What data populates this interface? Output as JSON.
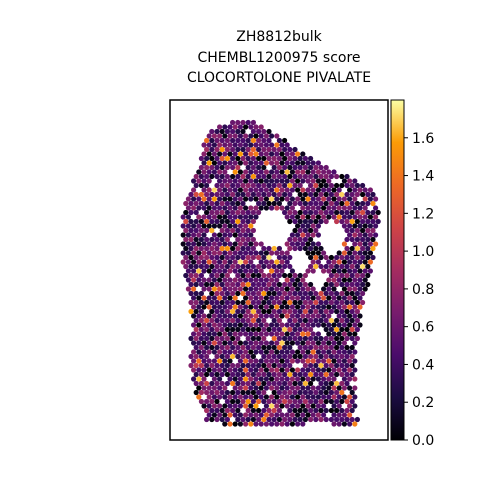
{
  "chart_data": {
    "type": "scatter",
    "title_lines": [
      "ZH8812bulk",
      "CHEMBL1200975 score",
      "CLOCORTOLONE PIVALATE"
    ],
    "xlabel": "",
    "ylabel": "",
    "grid": false,
    "legend": "none",
    "colorbar": {
      "colormap": "inferno",
      "range": [
        0.0,
        1.8
      ],
      "ticks": [
        0.0,
        0.2,
        0.4,
        0.6,
        0.8,
        1.0,
        1.2,
        1.4,
        1.6
      ],
      "tick_labels": [
        "0.0",
        "0.2",
        "0.4",
        "0.6",
        "0.8",
        "1.0",
        "1.2",
        "1.4",
        "1.6"
      ]
    },
    "spot_mean_score": 0.55,
    "spot_max_score": 1.78
  }
}
